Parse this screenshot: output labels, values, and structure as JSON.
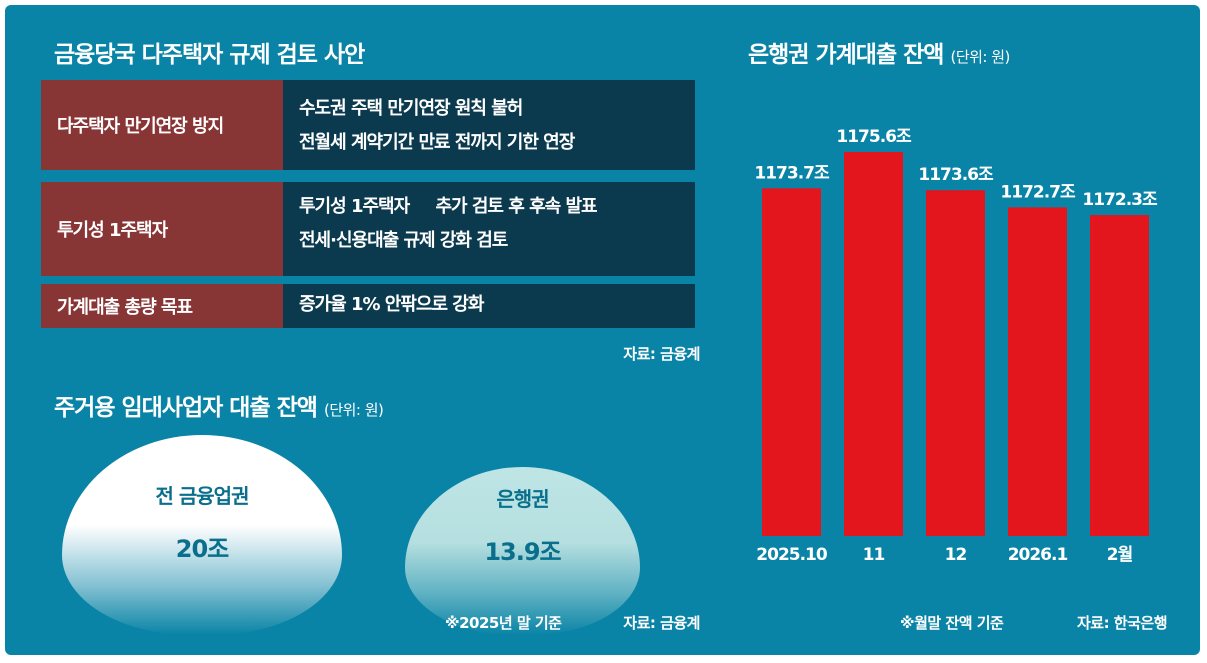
{
  "colors": {
    "background": "#0a84a6",
    "label_cell": "#883536",
    "value_cell": "#0b3a4e",
    "bar": "#e3161e"
  },
  "policy": {
    "title": "금융당국 다주택자 규제 검토 사안",
    "rows": [
      {
        "key": "다주택자 만기연장 방지",
        "value": "수도권 주택 만기연장 원칙 불허\n전월세 계약기간 만료 전까지 기한 연장"
      },
      {
        "key": "투기성 1주택자",
        "value": "투기성 1주택자     추가 검토 후 후속 발표\n전세·신용대출 규제 강화 검토"
      },
      {
        "key": "가계대출 총량 목표",
        "value": "증가율 1% 안팎으로 강화"
      }
    ],
    "source": "자료: 금융계"
  },
  "rental": {
    "title": "주거용 임대사업자 대출 잔액",
    "unit": "(단위: 원)",
    "items": [
      {
        "label": "전 금융업권",
        "value": "20조"
      },
      {
        "label": "은행권",
        "value": "13.9조"
      }
    ],
    "note": "※2025년 말 기준",
    "source": "자료: 금융계"
  },
  "chart_data": {
    "type": "bar",
    "title": "은행권 가계대출 잔액",
    "unit": "(단위: 원)",
    "categories": [
      "2025.10",
      "11",
      "12",
      "2026.1",
      "2월"
    ],
    "values": [
      1173.7,
      1175.6,
      1173.6,
      1172.7,
      1172.3
    ],
    "labels": [
      "1173.7조",
      "1175.6조",
      "1173.6조",
      "1172.7조",
      "1172.3조"
    ],
    "grid": false,
    "note": "※월말 잔액 기준",
    "source": "자료: 한국은행"
  }
}
